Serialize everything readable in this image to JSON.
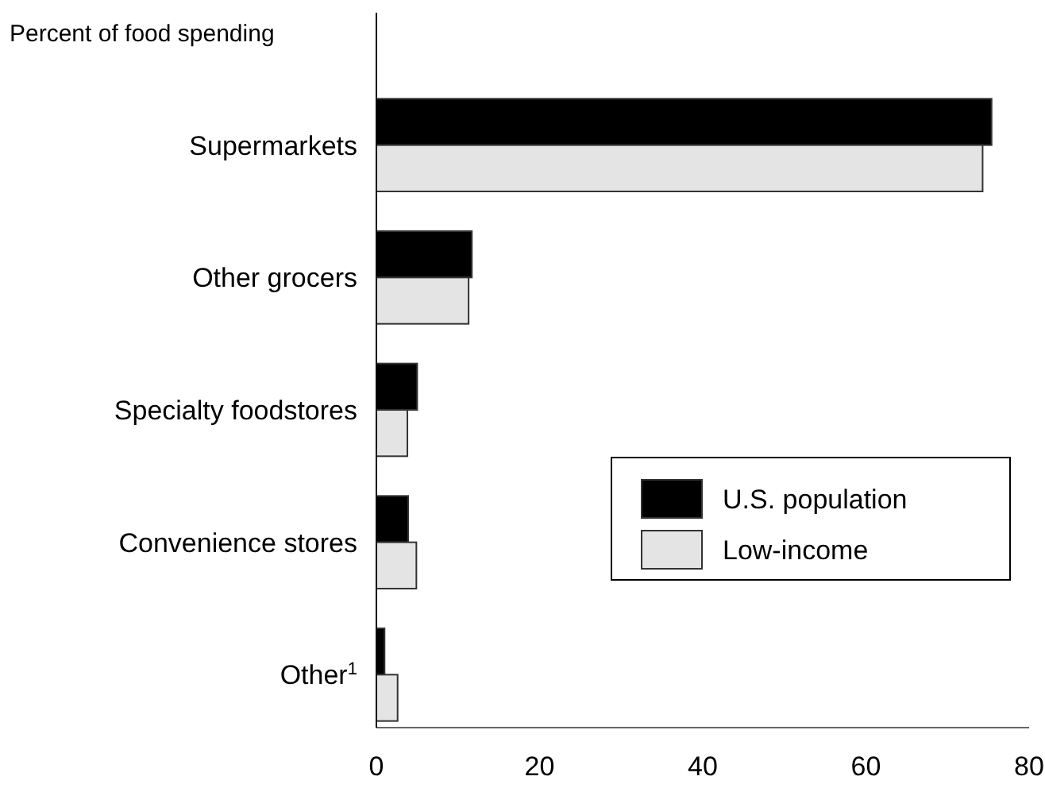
{
  "chart_data": {
    "type": "bar",
    "orientation": "horizontal",
    "title": "Percent of food spending",
    "categories": [
      "Supermarkets",
      "Other grocers",
      "Specialty foodstores",
      "Convenience stores",
      "Other$^{1}$"
    ],
    "series": [
      {
        "name": "U.S. population",
        "color": "#000000",
        "values": [
          75.4,
          11.7,
          5.0,
          3.9,
          1.0
        ]
      },
      {
        "name": "Low-income",
        "color": "#e4e4e4",
        "values": [
          74.3,
          11.3,
          3.8,
          4.9,
          2.6
        ]
      }
    ],
    "xlim": [
      0,
      80
    ],
    "xticks": [
      0,
      20,
      40,
      60,
      80
    ],
    "grid": false,
    "legend": "bottom right"
  }
}
